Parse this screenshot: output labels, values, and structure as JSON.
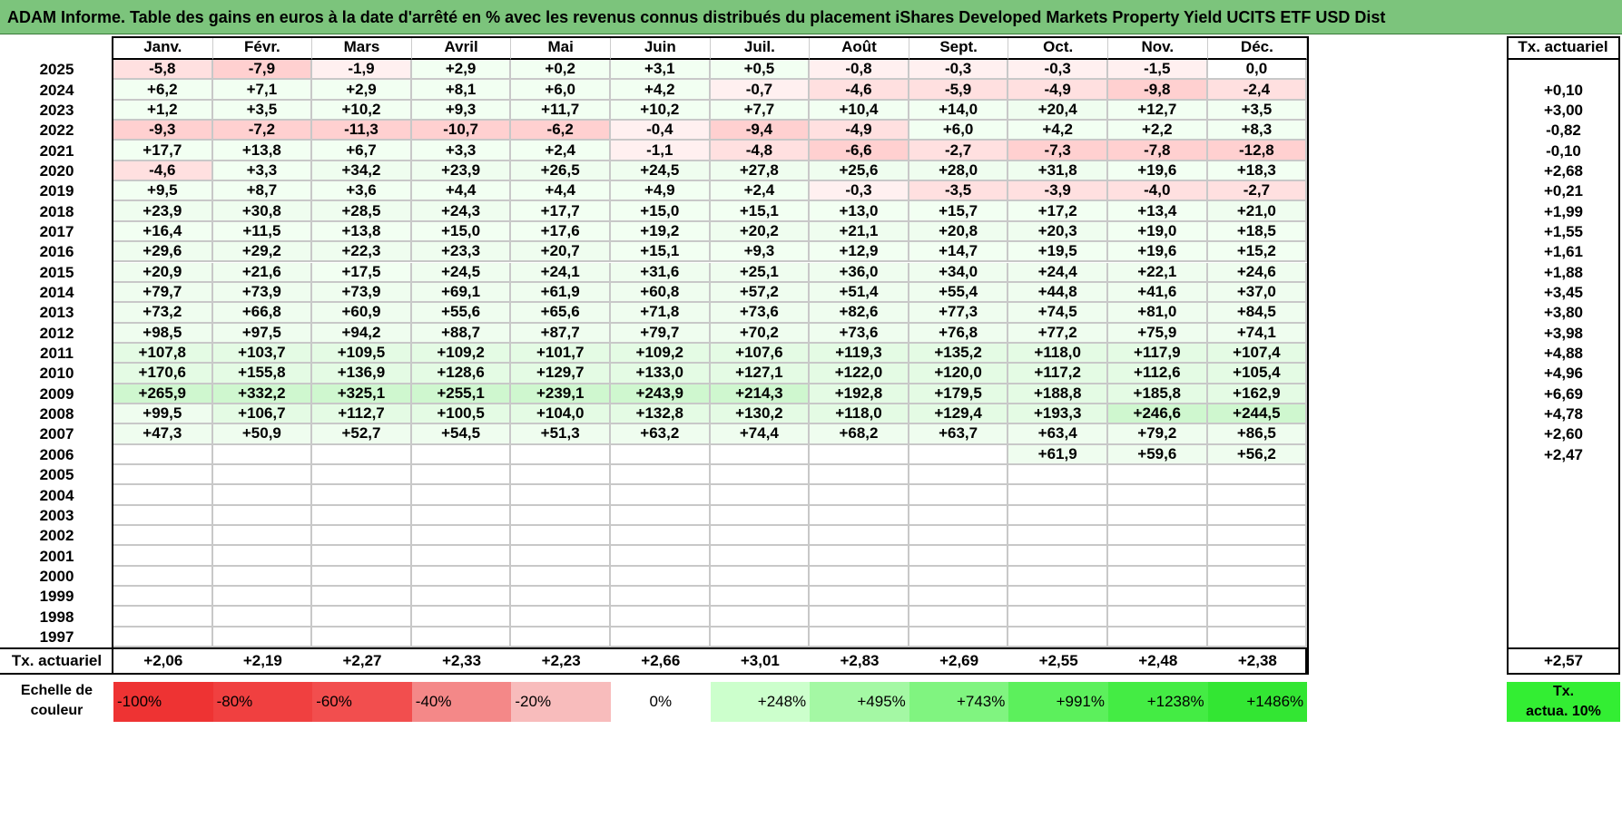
{
  "title": "ADAM Informe. Table des gains en euros à la date d'arrêté en % avec les revenus connus distribués du placement iShares Developed Markets Property Yield UCITS ETF USD Dist",
  "months": [
    "Janv.",
    "Févr.",
    "Mars",
    "Avril",
    "Mai",
    "Juin",
    "Juil.",
    "Août",
    "Sept.",
    "Oct.",
    "Nov.",
    "Déc."
  ],
  "rate_header": "Tx. actuariel",
  "rows": [
    {
      "year": "2025",
      "values": [
        "-5,8",
        "-7,9",
        "-1,9",
        "+2,9",
        "+0,2",
        "+3,1",
        "+0,5",
        "-0,8",
        "-0,3",
        "-0,3",
        "-1,5",
        "0,0"
      ],
      "rate": ""
    },
    {
      "year": "2024",
      "values": [
        "+6,2",
        "+7,1",
        "+2,9",
        "+8,1",
        "+6,0",
        "+4,2",
        "-0,7",
        "-4,6",
        "-5,9",
        "-4,9",
        "-9,8",
        "-2,4"
      ],
      "rate": "+0,10"
    },
    {
      "year": "2023",
      "values": [
        "+1,2",
        "+3,5",
        "+10,2",
        "+9,3",
        "+11,7",
        "+10,2",
        "+7,7",
        "+10,4",
        "+14,0",
        "+20,4",
        "+12,7",
        "+3,5"
      ],
      "rate": "+3,00"
    },
    {
      "year": "2022",
      "values": [
        "-9,3",
        "-7,2",
        "-11,3",
        "-10,7",
        "-6,2",
        "-0,4",
        "-9,4",
        "-4,9",
        "+6,0",
        "+4,2",
        "+2,2",
        "+8,3"
      ],
      "rate": "-0,82"
    },
    {
      "year": "2021",
      "values": [
        "+17,7",
        "+13,8",
        "+6,7",
        "+3,3",
        "+2,4",
        "-1,1",
        "-4,8",
        "-6,6",
        "-2,7",
        "-7,3",
        "-7,8",
        "-12,8"
      ],
      "rate": "-0,10"
    },
    {
      "year": "2020",
      "values": [
        "-4,6",
        "+3,3",
        "+34,2",
        "+23,9",
        "+26,5",
        "+24,5",
        "+27,8",
        "+25,6",
        "+28,0",
        "+31,8",
        "+19,6",
        "+18,3"
      ],
      "rate": "+2,68"
    },
    {
      "year": "2019",
      "values": [
        "+9,5",
        "+8,7",
        "+3,6",
        "+4,4",
        "+4,4",
        "+4,9",
        "+2,4",
        "-0,3",
        "-3,5",
        "-3,9",
        "-4,0",
        "-2,7"
      ],
      "rate": "+0,21"
    },
    {
      "year": "2018",
      "values": [
        "+23,9",
        "+30,8",
        "+28,5",
        "+24,3",
        "+17,7",
        "+15,0",
        "+15,1",
        "+13,0",
        "+15,7",
        "+17,2",
        "+13,4",
        "+21,0"
      ],
      "rate": "+1,99"
    },
    {
      "year": "2017",
      "values": [
        "+16,4",
        "+11,5",
        "+13,8",
        "+15,0",
        "+17,6",
        "+19,2",
        "+20,2",
        "+21,1",
        "+20,8",
        "+20,3",
        "+19,0",
        "+18,5"
      ],
      "rate": "+1,55"
    },
    {
      "year": "2016",
      "values": [
        "+29,6",
        "+29,2",
        "+22,3",
        "+23,3",
        "+20,7",
        "+15,1",
        "+9,3",
        "+12,9",
        "+14,7",
        "+19,5",
        "+19,6",
        "+15,2"
      ],
      "rate": "+1,61"
    },
    {
      "year": "2015",
      "values": [
        "+20,9",
        "+21,6",
        "+17,5",
        "+24,5",
        "+24,1",
        "+31,6",
        "+25,1",
        "+36,0",
        "+34,0",
        "+24,4",
        "+22,1",
        "+24,6"
      ],
      "rate": "+1,88"
    },
    {
      "year": "2014",
      "values": [
        "+79,7",
        "+73,9",
        "+73,9",
        "+69,1",
        "+61,9",
        "+60,8",
        "+57,2",
        "+51,4",
        "+55,4",
        "+44,8",
        "+41,6",
        "+37,0"
      ],
      "rate": "+3,45"
    },
    {
      "year": "2013",
      "values": [
        "+73,2",
        "+66,8",
        "+60,9",
        "+55,6",
        "+65,6",
        "+71,8",
        "+73,6",
        "+82,6",
        "+77,3",
        "+74,5",
        "+81,0",
        "+84,5"
      ],
      "rate": "+3,80"
    },
    {
      "year": "2012",
      "values": [
        "+98,5",
        "+97,5",
        "+94,2",
        "+88,7",
        "+87,7",
        "+79,7",
        "+70,2",
        "+73,6",
        "+76,8",
        "+77,2",
        "+75,9",
        "+74,1"
      ],
      "rate": "+3,98"
    },
    {
      "year": "2011",
      "values": [
        "+107,8",
        "+103,7",
        "+109,5",
        "+109,2",
        "+101,7",
        "+109,2",
        "+107,6",
        "+119,3",
        "+135,2",
        "+118,0",
        "+117,9",
        "+107,4"
      ],
      "rate": "+4,88"
    },
    {
      "year": "2010",
      "values": [
        "+170,6",
        "+155,8",
        "+136,9",
        "+128,6",
        "+129,7",
        "+133,0",
        "+127,1",
        "+122,0",
        "+120,0",
        "+117,2",
        "+112,6",
        "+105,4"
      ],
      "rate": "+4,96"
    },
    {
      "year": "2009",
      "values": [
        "+265,9",
        "+332,2",
        "+325,1",
        "+255,1",
        "+239,1",
        "+243,9",
        "+214,3",
        "+192,8",
        "+179,5",
        "+188,8",
        "+185,8",
        "+162,9"
      ],
      "rate": "+6,69"
    },
    {
      "year": "2008",
      "values": [
        "+99,5",
        "+106,7",
        "+112,7",
        "+100,5",
        "+104,0",
        "+132,8",
        "+130,2",
        "+118,0",
        "+129,4",
        "+193,3",
        "+246,6",
        "+244,5"
      ],
      "rate": "+4,78"
    },
    {
      "year": "2007",
      "values": [
        "+47,3",
        "+50,9",
        "+52,7",
        "+54,5",
        "+51,3",
        "+63,2",
        "+74,4",
        "+68,2",
        "+63,7",
        "+63,4",
        "+79,2",
        "+86,5"
      ],
      "rate": "+2,60"
    },
    {
      "year": "2006",
      "values": [
        "",
        "",
        "",
        "",
        "",
        "",
        "",
        "",
        "",
        "+61,9",
        "+59,6",
        "+56,2"
      ],
      "rate": "+2,47"
    },
    {
      "year": "2005",
      "values": [
        "",
        "",
        "",
        "",
        "",
        "",
        "",
        "",
        "",
        "",
        "",
        ""
      ],
      "rate": ""
    },
    {
      "year": "2004",
      "values": [
        "",
        "",
        "",
        "",
        "",
        "",
        "",
        "",
        "",
        "",
        "",
        ""
      ],
      "rate": ""
    },
    {
      "year": "2003",
      "values": [
        "",
        "",
        "",
        "",
        "",
        "",
        "",
        "",
        "",
        "",
        "",
        ""
      ],
      "rate": ""
    },
    {
      "year": "2002",
      "values": [
        "",
        "",
        "",
        "",
        "",
        "",
        "",
        "",
        "",
        "",
        "",
        ""
      ],
      "rate": ""
    },
    {
      "year": "2001",
      "values": [
        "",
        "",
        "",
        "",
        "",
        "",
        "",
        "",
        "",
        "",
        "",
        ""
      ],
      "rate": ""
    },
    {
      "year": "2000",
      "values": [
        "",
        "",
        "",
        "",
        "",
        "",
        "",
        "",
        "",
        "",
        "",
        ""
      ],
      "rate": ""
    },
    {
      "year": "1999",
      "values": [
        "",
        "",
        "",
        "",
        "",
        "",
        "",
        "",
        "",
        "",
        "",
        ""
      ],
      "rate": ""
    },
    {
      "year": "1998",
      "values": [
        "",
        "",
        "",
        "",
        "",
        "",
        "",
        "",
        "",
        "",
        "",
        ""
      ],
      "rate": ""
    },
    {
      "year": "1997",
      "values": [
        "",
        "",
        "",
        "",
        "",
        "",
        "",
        "",
        "",
        "",
        "",
        ""
      ],
      "rate": ""
    }
  ],
  "footer": {
    "label": "Tx. actuariel",
    "values": [
      "+2,06",
      "+2,19",
      "+2,27",
      "+2,33",
      "+2,23",
      "+2,66",
      "+3,01",
      "+2,83",
      "+2,69",
      "+2,55",
      "+2,48",
      "+2,38"
    ],
    "rate": "+2,57"
  },
  "scale": {
    "label_line1": "Echelle de",
    "label_line2": "couleur",
    "steps": [
      {
        "text": "-100%",
        "color": "#ee3333"
      },
      {
        "text": "-80%",
        "color": "#f04040"
      },
      {
        "text": "-60%",
        "color": "#f24e4e"
      },
      {
        "text": "-40%",
        "color": "#f48888"
      },
      {
        "text": "-20%",
        "color": "#f8bcbc"
      },
      {
        "text": "0%",
        "color": "#ffffff"
      },
      {
        "text": "+248%",
        "color": "#ccffcc"
      },
      {
        "text": "+495%",
        "color": "#a4f8a4"
      },
      {
        "text": "+743%",
        "color": "#80f480"
      },
      {
        "text": "+991%",
        "color": "#5cf05c"
      },
      {
        "text": "+1238%",
        "color": "#44ec44"
      },
      {
        "text": "+1486%",
        "color": "#33e633"
      }
    ],
    "badge_line1": "Tx.",
    "badge_line2": "actua. 10%",
    "badge_color": "#33ee33"
  },
  "colors": {
    "title_bg": "#7cc47c",
    "neg_strong": "#ffd0d0",
    "neg_light": "#fff0f0",
    "pos_light": "#f2fff2",
    "pos_strong": "#d8fad8"
  }
}
